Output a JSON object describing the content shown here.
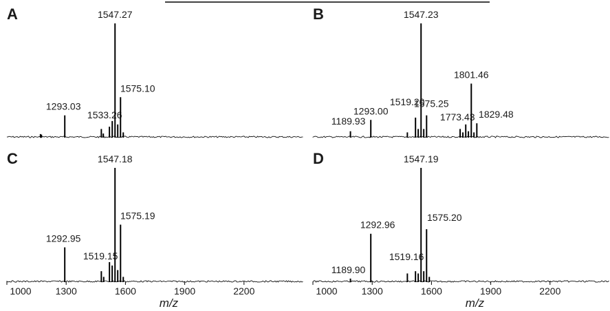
{
  "chart_data": [
    {
      "type": "line",
      "panel": "A",
      "xlim": [
        1000,
        2500
      ],
      "peaks": [
        {
          "x": 1170,
          "y": 0.025
        },
        {
          "x": 1175,
          "y": 0.02
        },
        {
          "x": 1293.03,
          "y": 0.19,
          "label": "1293.03"
        },
        {
          "x": 1478,
          "y": 0.07
        },
        {
          "x": 1488,
          "y": 0.03
        },
        {
          "x": 1519,
          "y": 0.09
        },
        {
          "x": 1533.26,
          "y": 0.14,
          "label": "1533.26"
        },
        {
          "x": 1547.27,
          "y": 1.0,
          "label": "1547.27"
        },
        {
          "x": 1561,
          "y": 0.11
        },
        {
          "x": 1575.1,
          "y": 0.35,
          "label": "1575.10"
        },
        {
          "x": 1589,
          "y": 0.04
        }
      ]
    },
    {
      "type": "line",
      "panel": "B",
      "xlim": [
        1000,
        2500
      ],
      "peaks": [
        {
          "x": 1189.93,
          "y": 0.05,
          "label": "1189.93"
        },
        {
          "x": 1293.0,
          "y": 0.15,
          "label": "1293.00"
        },
        {
          "x": 1478,
          "y": 0.04
        },
        {
          "x": 1519.2,
          "y": 0.17,
          "label": "1519.20"
        },
        {
          "x": 1533,
          "y": 0.07
        },
        {
          "x": 1547.23,
          "y": 1.0,
          "label": "1547.23"
        },
        {
          "x": 1561,
          "y": 0.07
        },
        {
          "x": 1575.25,
          "y": 0.19,
          "label": "1575.25"
        },
        {
          "x": 1745,
          "y": 0.07
        },
        {
          "x": 1759,
          "y": 0.04
        },
        {
          "x": 1773.43,
          "y": 0.11,
          "label": "1773.43"
        },
        {
          "x": 1787,
          "y": 0.05
        },
        {
          "x": 1801.46,
          "y": 0.47,
          "label": "1801.46"
        },
        {
          "x": 1815,
          "y": 0.04
        },
        {
          "x": 1829.48,
          "y": 0.12,
          "label": "1829.48"
        }
      ]
    },
    {
      "type": "line",
      "panel": "C",
      "xlim": [
        1000,
        2500
      ],
      "xlabel": "m/z",
      "xticks": [
        1000,
        1300,
        1600,
        1900,
        2200
      ],
      "peaks": [
        {
          "x": 1292.95,
          "y": 0.3,
          "label": "1292.95"
        },
        {
          "x": 1478,
          "y": 0.09
        },
        {
          "x": 1490,
          "y": 0.04
        },
        {
          "x": 1519.15,
          "y": 0.17,
          "label": "1519.15"
        },
        {
          "x": 1533,
          "y": 0.14
        },
        {
          "x": 1547.18,
          "y": 1.0,
          "label": "1547.18"
        },
        {
          "x": 1561,
          "y": 0.1
        },
        {
          "x": 1575.19,
          "y": 0.5,
          "label": "1575.19"
        },
        {
          "x": 1589,
          "y": 0.04
        }
      ]
    },
    {
      "type": "line",
      "panel": "D",
      "xlim": [
        1000,
        2500
      ],
      "xlabel": "m/z",
      "xticks": [
        1000,
        1300,
        1600,
        1900,
        2200
      ],
      "peaks": [
        {
          "x": 1189.9,
          "y": 0.025,
          "label": "1189.90"
        },
        {
          "x": 1292.96,
          "y": 0.42,
          "label": "1292.96"
        },
        {
          "x": 1478,
          "y": 0.07
        },
        {
          "x": 1519.16,
          "y": 0.09,
          "label": "1519.16"
        },
        {
          "x": 1533,
          "y": 0.07
        },
        {
          "x": 1547.19,
          "y": 1.0,
          "label": "1547.19"
        },
        {
          "x": 1561,
          "y": 0.09
        },
        {
          "x": 1575.2,
          "y": 0.46,
          "label": "1575.20"
        },
        {
          "x": 1589,
          "y": 0.04
        }
      ]
    }
  ]
}
